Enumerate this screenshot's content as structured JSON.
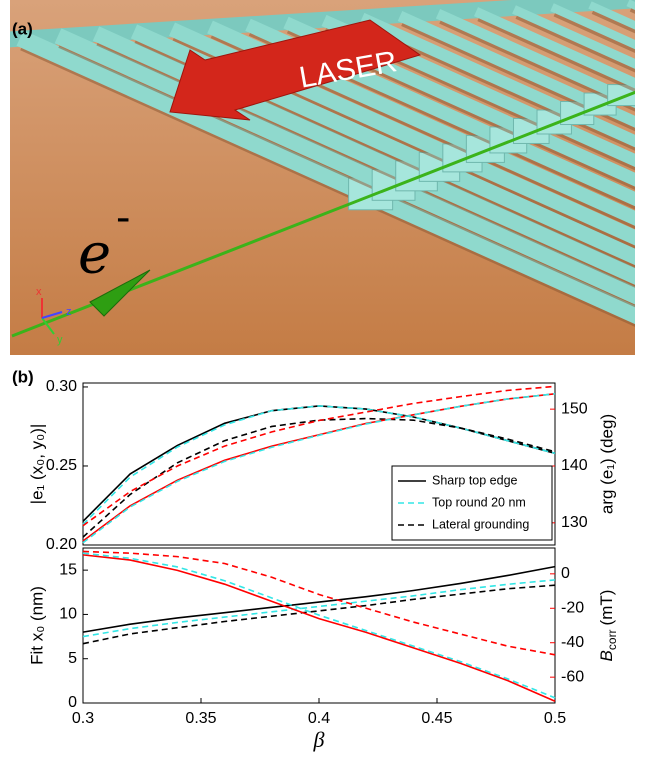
{
  "panel_a": {
    "label": "(a)",
    "laser": "LASER",
    "electron": "e",
    "charge": "-",
    "axes": [
      "x",
      "y",
      "z"
    ]
  },
  "panel_b": {
    "label": "(b)"
  },
  "chart_data": [
    {
      "type": "line",
      "ylabel": "|e₁ (x₀, y₀)|",
      "y2label": "arg (e₁) (deg)",
      "y2_color": "#ff0000",
      "x": [
        0.3,
        0.32,
        0.34,
        0.36,
        0.38,
        0.4,
        0.42,
        0.44,
        0.46,
        0.48,
        0.5
      ],
      "xlim": [
        0.3,
        0.5
      ],
      "ylim": [
        0.2,
        0.3025
      ],
      "yticks": [
        {
          "value": 0.2,
          "label": "0.20"
        },
        {
          "value": 0.25,
          "label": "0.25"
        },
        {
          "value": 0.3,
          "label": "0.30"
        }
      ],
      "y2lim": [
        126.1,
        154.6
      ],
      "y2ticks": [
        130,
        140,
        150
      ],
      "legend": "lower right",
      "series": [
        {
          "name": "Sharp top edge",
          "color": "#000000",
          "linestyle": "solid",
          "values": [
            0.215,
            0.245,
            0.263,
            0.277,
            0.285,
            0.288,
            0.286,
            0.281,
            0.274,
            0.266,
            0.258
          ]
        },
        {
          "name": "Top round 20 nm",
          "color": "#33e6e6",
          "linestyle": "dashed",
          "values": [
            0.213,
            0.243,
            0.262,
            0.276,
            0.285,
            0.288,
            0.286,
            0.281,
            0.274,
            0.266,
            0.258
          ]
        },
        {
          "name": "Lateral grounding",
          "color": "#000000",
          "linestyle": "dashed",
          "values": [
            0.205,
            0.232,
            0.252,
            0.266,
            0.275,
            0.279,
            0.28,
            0.279,
            0.274,
            0.267,
            0.259
          ]
        },
        {
          "color": "#ff0000",
          "linestyle": "solid",
          "axis": "y2",
          "values": [
            126.8,
            133,
            137.5,
            141,
            143.5,
            145.5,
            147.5,
            149,
            150.5,
            151.8,
            152.7
          ]
        },
        {
          "color": "#33e6e6",
          "linestyle": "dashed",
          "axis": "y2",
          "values": [
            126.5,
            132.8,
            137.3,
            140.8,
            143.3,
            145.4,
            147.4,
            149,
            150.5,
            151.8,
            152.7
          ]
        },
        {
          "color": "#ff0000",
          "linestyle": "dashed",
          "axis": "y2",
          "values": [
            129.5,
            135.5,
            140,
            143.5,
            146,
            148,
            149.5,
            151,
            152.2,
            153.3,
            154
          ]
        }
      ]
    },
    {
      "type": "line",
      "ylabel": "Fit x₀ (nm)",
      "y2label": {
        "main": "B",
        "sub": "corr",
        "unit": "(mT)"
      },
      "y2_color": "#ff0000",
      "xlabel": "β",
      "x": [
        0.3,
        0.32,
        0.34,
        0.36,
        0.38,
        0.4,
        0.42,
        0.44,
        0.46,
        0.48,
        0.5
      ],
      "xlim": [
        0.3,
        0.5
      ],
      "xticks": [
        0.3,
        0.35,
        0.4,
        0.45,
        0.5
      ],
      "ylim": [
        0,
        17.5
      ],
      "yticks": [
        0,
        5,
        10,
        15
      ],
      "y2lim": [
        -75,
        15
      ],
      "y2ticks": [
        -60,
        -40,
        -20,
        0
      ],
      "series": [
        {
          "color": "#000000",
          "linestyle": "solid",
          "values": [
            8.0,
            8.9,
            9.6,
            10.2,
            10.8,
            11.4,
            12.0,
            12.7,
            13.5,
            14.4,
            15.4
          ]
        },
        {
          "color": "#33e6e6",
          "linestyle": "dashed",
          "values": [
            7.5,
            8.4,
            9.1,
            9.7,
            10.3,
            10.9,
            11.5,
            12.1,
            12.8,
            13.4,
            13.9
          ]
        },
        {
          "color": "#000000",
          "linestyle": "dashed",
          "values": [
            6.7,
            7.8,
            8.5,
            9.2,
            9.8,
            10.4,
            11.0,
            11.7,
            12.3,
            12.9,
            13.3
          ]
        },
        {
          "color": "#ff0000",
          "linestyle": "solid",
          "axis": "y2",
          "values": [
            11,
            8,
            2,
            -6,
            -16,
            -26,
            -34,
            -43,
            -52,
            -62,
            -74
          ]
        },
        {
          "color": "#33e6e6",
          "linestyle": "dashed",
          "axis": "y2",
          "values": [
            12,
            9,
            4,
            -4,
            -14,
            -24,
            -33,
            -42,
            -51,
            -61,
            -72
          ]
        },
        {
          "color": "#ff0000",
          "linestyle": "dashed",
          "axis": "y2",
          "values": [
            13,
            12,
            10,
            6,
            -2,
            -12,
            -20,
            -28,
            -35,
            -42,
            -47
          ]
        }
      ]
    }
  ]
}
